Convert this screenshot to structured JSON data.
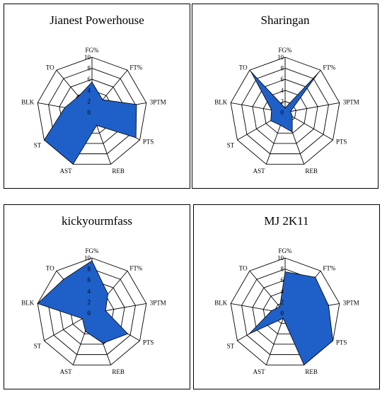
{
  "chart_data": [
    {
      "type": "radar",
      "title": "Jianest Powerhouse",
      "categories": [
        "FG%",
        "FT%",
        "3PTM",
        "PTS",
        "REB",
        "AST",
        "ST",
        "BLK",
        "TO"
      ],
      "ticks": [
        "0",
        "2",
        "4",
        "6",
        "8",
        "10"
      ],
      "rlim": [
        0,
        10
      ],
      "values": [
        5.5,
        3,
        8.2,
        9.2,
        2.5,
        10,
        10,
        5,
        3.8
      ],
      "color": "#1f5fc8"
    },
    {
      "type": "radar",
      "title": "Sharingan",
      "categories": [
        "FG%",
        "FT%",
        "3PTM",
        "PTS",
        "REB",
        "AST",
        "ST",
        "BLK",
        "TO"
      ],
      "ticks": [
        "0",
        "2",
        "4",
        "6",
        "8",
        "10"
      ],
      "rlim": [
        0,
        10
      ],
      "values": [
        0.8,
        9.3,
        1,
        1.5,
        3.8,
        2.5,
        3,
        2.5,
        9.6
      ],
      "color": "#1f5fc8"
    },
    {
      "type": "radar",
      "title": "kickyourmfass",
      "categories": [
        "FG%",
        "FT%",
        "3PTM",
        "PTS",
        "REB",
        "AST",
        "ST",
        "BLK",
        "TO"
      ],
      "ticks": [
        "0",
        "2",
        "4",
        "6",
        "8",
        "10"
      ],
      "rlim": [
        0,
        10
      ],
      "values": [
        9.5,
        4.5,
        2.5,
        7.5,
        5.8,
        3.5,
        2,
        10,
        8
      ],
      "color": "#1f5fc8"
    },
    {
      "type": "radar",
      "title": "MJ 2K11",
      "categories": [
        "FG%",
        "FT%",
        "3PTM",
        "PTS",
        "REB",
        "AST",
        "ST",
        "BLK",
        "TO"
      ],
      "ticks": [
        "0",
        "2",
        "4",
        "6",
        "8",
        "10"
      ],
      "rlim": [
        0,
        10
      ],
      "values": [
        7.5,
        8.5,
        8,
        10,
        10,
        1,
        7.5,
        2.5,
        1.5
      ],
      "color": "#1f5fc8"
    }
  ]
}
